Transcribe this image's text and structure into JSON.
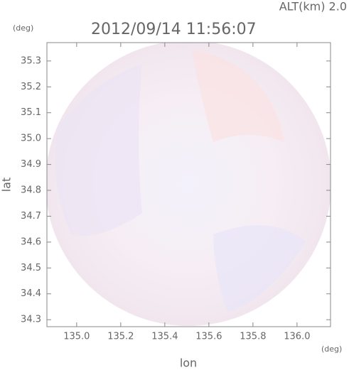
{
  "chart_data": {
    "type": "radar-map",
    "title": "2012/09/14 11:56:07",
    "subtitle": "ALT(km) 2.0",
    "x_label": "lon",
    "y_label": "lat",
    "x_unit": "(deg)",
    "y_unit": "(deg)",
    "xlim": [
      134.865,
      136.152
    ],
    "ylim": [
      34.273,
      35.371
    ],
    "xticks": [
      {
        "value": 135,
        "label": "135.0"
      },
      135.2,
      135.4,
      135.6,
      135.8,
      {
        "value": 136,
        "label": "136.0"
      }
    ],
    "yticks": [
      35.3,
      35.2,
      35.1,
      {
        "value": 35,
        "label": "35.0"
      },
      34.9,
      34.8,
      34.7,
      34.6,
      34.5,
      34.4,
      34.3
    ]
  }
}
